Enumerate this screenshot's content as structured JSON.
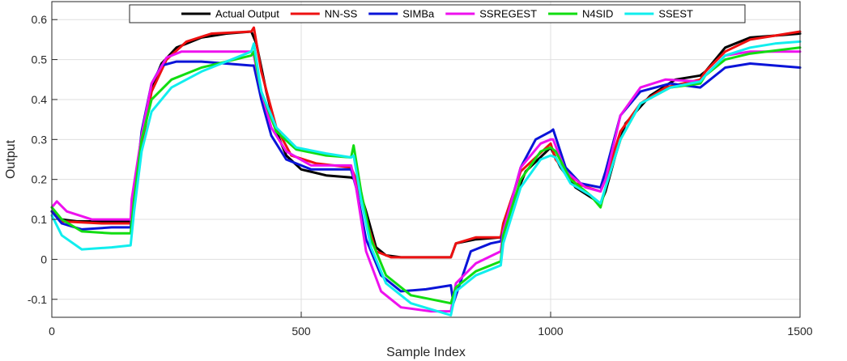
{
  "chart_data": {
    "type": "line",
    "xlabel": "Sample Index",
    "ylabel": "Output",
    "xlim": [
      0,
      1500
    ],
    "ylim": [
      -0.145,
      0.645
    ],
    "xticks": [
      0,
      500,
      1000,
      1500
    ],
    "yticks": [
      -0.1,
      0,
      0.1,
      0.2,
      0.3,
      0.4,
      0.5,
      0.6
    ],
    "grid": true,
    "legend_position": "top-center",
    "series": [
      {
        "name": "Actual Output",
        "color": "#000000",
        "points": [
          [
            0,
            0.12
          ],
          [
            20,
            0.1
          ],
          [
            50,
            0.095
          ],
          [
            100,
            0.095
          ],
          [
            150,
            0.095
          ],
          [
            158,
            0.095
          ],
          [
            165,
            0.15
          ],
          [
            180,
            0.3
          ],
          [
            200,
            0.43
          ],
          [
            220,
            0.49
          ],
          [
            250,
            0.53
          ],
          [
            300,
            0.555
          ],
          [
            350,
            0.565
          ],
          [
            400,
            0.57
          ],
          [
            410,
            0.54
          ],
          [
            430,
            0.42
          ],
          [
            450,
            0.32
          ],
          [
            470,
            0.26
          ],
          [
            500,
            0.225
          ],
          [
            550,
            0.21
          ],
          [
            600,
            0.205
          ],
          [
            610,
            0.2
          ],
          [
            630,
            0.12
          ],
          [
            650,
            0.03
          ],
          [
            670,
            0.01
          ],
          [
            700,
            0.005
          ],
          [
            750,
            0.005
          ],
          [
            800,
            0.005
          ],
          [
            810,
            0.04
          ],
          [
            850,
            0.05
          ],
          [
            900,
            0.055
          ],
          [
            910,
            0.1
          ],
          [
            950,
            0.22
          ],
          [
            1000,
            0.28
          ],
          [
            1020,
            0.23
          ],
          [
            1050,
            0.18
          ],
          [
            1100,
            0.14
          ],
          [
            1110,
            0.17
          ],
          [
            1130,
            0.26
          ],
          [
            1150,
            0.34
          ],
          [
            1200,
            0.41
          ],
          [
            1250,
            0.45
          ],
          [
            1300,
            0.46
          ],
          [
            1310,
            0.47
          ],
          [
            1350,
            0.53
          ],
          [
            1400,
            0.555
          ],
          [
            1450,
            0.56
          ],
          [
            1500,
            0.565
          ]
        ]
      },
      {
        "name": "NN-SS",
        "color": "#ee1111",
        "points": [
          [
            0,
            0.12
          ],
          [
            20,
            0.095
          ],
          [
            100,
            0.09
          ],
          [
            158,
            0.09
          ],
          [
            165,
            0.14
          ],
          [
            180,
            0.28
          ],
          [
            200,
            0.42
          ],
          [
            230,
            0.5
          ],
          [
            270,
            0.545
          ],
          [
            320,
            0.565
          ],
          [
            400,
            0.57
          ],
          [
            405,
            0.58
          ],
          [
            420,
            0.47
          ],
          [
            450,
            0.33
          ],
          [
            480,
            0.26
          ],
          [
            530,
            0.24
          ],
          [
            600,
            0.23
          ],
          [
            610,
            0.2
          ],
          [
            630,
            0.1
          ],
          [
            650,
            0.02
          ],
          [
            680,
            0.005
          ],
          [
            750,
            0.005
          ],
          [
            800,
            0.005
          ],
          [
            810,
            0.04
          ],
          [
            850,
            0.055
          ],
          [
            900,
            0.055
          ],
          [
            905,
            0.09
          ],
          [
            940,
            0.22
          ],
          [
            1000,
            0.29
          ],
          [
            1010,
            0.25
          ],
          [
            1050,
            0.19
          ],
          [
            1100,
            0.17
          ],
          [
            1110,
            0.2
          ],
          [
            1140,
            0.32
          ],
          [
            1180,
            0.39
          ],
          [
            1230,
            0.43
          ],
          [
            1300,
            0.45
          ],
          [
            1310,
            0.47
          ],
          [
            1350,
            0.52
          ],
          [
            1400,
            0.55
          ],
          [
            1450,
            0.56
          ],
          [
            1500,
            0.57
          ]
        ]
      },
      {
        "name": "SIMBa",
        "color": "#0a14d8",
        "points": [
          [
            0,
            0.12
          ],
          [
            20,
            0.09
          ],
          [
            60,
            0.075
          ],
          [
            120,
            0.08
          ],
          [
            158,
            0.08
          ],
          [
            165,
            0.15
          ],
          [
            180,
            0.32
          ],
          [
            200,
            0.44
          ],
          [
            220,
            0.485
          ],
          [
            250,
            0.495
          ],
          [
            300,
            0.495
          ],
          [
            400,
            0.485
          ],
          [
            405,
            0.485
          ],
          [
            420,
            0.4
          ],
          [
            440,
            0.31
          ],
          [
            470,
            0.25
          ],
          [
            520,
            0.225
          ],
          [
            600,
            0.225
          ],
          [
            610,
            0.18
          ],
          [
            630,
            0.05
          ],
          [
            660,
            -0.04
          ],
          [
            700,
            -0.08
          ],
          [
            750,
            -0.075
          ],
          [
            800,
            -0.065
          ],
          [
            805,
            -0.11
          ],
          [
            840,
            0.02
          ],
          [
            880,
            0.04
          ],
          [
            900,
            0.045
          ],
          [
            905,
            0.07
          ],
          [
            940,
            0.23
          ],
          [
            970,
            0.3
          ],
          [
            1000,
            0.32
          ],
          [
            1005,
            0.325
          ],
          [
            1030,
            0.23
          ],
          [
            1060,
            0.19
          ],
          [
            1100,
            0.18
          ],
          [
            1110,
            0.22
          ],
          [
            1140,
            0.36
          ],
          [
            1180,
            0.42
          ],
          [
            1240,
            0.44
          ],
          [
            1300,
            0.43
          ],
          [
            1310,
            0.44
          ],
          [
            1350,
            0.48
          ],
          [
            1400,
            0.49
          ],
          [
            1500,
            0.48
          ]
        ]
      },
      {
        "name": "SSREGEST",
        "color": "#ee11ee",
        "points": [
          [
            0,
            0.13
          ],
          [
            10,
            0.145
          ],
          [
            30,
            0.12
          ],
          [
            80,
            0.1
          ],
          [
            158,
            0.1
          ],
          [
            160,
            0.15
          ],
          [
            180,
            0.31
          ],
          [
            200,
            0.44
          ],
          [
            230,
            0.505
          ],
          [
            260,
            0.52
          ],
          [
            300,
            0.52
          ],
          [
            400,
            0.52
          ],
          [
            405,
            0.51
          ],
          [
            420,
            0.42
          ],
          [
            440,
            0.33
          ],
          [
            470,
            0.27
          ],
          [
            520,
            0.235
          ],
          [
            600,
            0.235
          ],
          [
            610,
            0.18
          ],
          [
            630,
            0.02
          ],
          [
            660,
            -0.08
          ],
          [
            700,
            -0.12
          ],
          [
            760,
            -0.13
          ],
          [
            800,
            -0.13
          ],
          [
            810,
            -0.06
          ],
          [
            850,
            -0.01
          ],
          [
            900,
            0.02
          ],
          [
            905,
            0.07
          ],
          [
            940,
            0.23
          ],
          [
            980,
            0.29
          ],
          [
            1000,
            0.3
          ],
          [
            1005,
            0.3
          ],
          [
            1030,
            0.22
          ],
          [
            1070,
            0.18
          ],
          [
            1100,
            0.17
          ],
          [
            1110,
            0.2
          ],
          [
            1140,
            0.36
          ],
          [
            1180,
            0.43
          ],
          [
            1230,
            0.45
          ],
          [
            1300,
            0.445
          ],
          [
            1310,
            0.46
          ],
          [
            1350,
            0.51
          ],
          [
            1400,
            0.52
          ],
          [
            1500,
            0.52
          ]
        ]
      },
      {
        "name": "N4SID",
        "color": "#11dd11",
        "points": [
          [
            0,
            0.13
          ],
          [
            20,
            0.1
          ],
          [
            60,
            0.07
          ],
          [
            120,
            0.065
          ],
          [
            158,
            0.065
          ],
          [
            165,
            0.15
          ],
          [
            180,
            0.3
          ],
          [
            200,
            0.4
          ],
          [
            240,
            0.45
          ],
          [
            300,
            0.48
          ],
          [
            400,
            0.51
          ],
          [
            405,
            0.52
          ],
          [
            420,
            0.42
          ],
          [
            450,
            0.32
          ],
          [
            490,
            0.275
          ],
          [
            550,
            0.26
          ],
          [
            600,
            0.255
          ],
          [
            605,
            0.285
          ],
          [
            620,
            0.17
          ],
          [
            640,
            0.05
          ],
          [
            670,
            -0.04
          ],
          [
            720,
            -0.09
          ],
          [
            800,
            -0.11
          ],
          [
            810,
            -0.07
          ],
          [
            850,
            -0.03
          ],
          [
            900,
            -0.005
          ],
          [
            905,
            0.06
          ],
          [
            940,
            0.2
          ],
          [
            980,
            0.27
          ],
          [
            1000,
            0.28
          ],
          [
            1010,
            0.27
          ],
          [
            1040,
            0.2
          ],
          [
            1080,
            0.16
          ],
          [
            1100,
            0.13
          ],
          [
            1110,
            0.18
          ],
          [
            1140,
            0.3
          ],
          [
            1180,
            0.39
          ],
          [
            1240,
            0.43
          ],
          [
            1300,
            0.44
          ],
          [
            1310,
            0.46
          ],
          [
            1350,
            0.5
          ],
          [
            1400,
            0.515
          ],
          [
            1500,
            0.53
          ]
        ]
      },
      {
        "name": "SSEST",
        "color": "#11eeee",
        "points": [
          [
            0,
            0.11
          ],
          [
            20,
            0.06
          ],
          [
            60,
            0.025
          ],
          [
            120,
            0.03
          ],
          [
            158,
            0.035
          ],
          [
            165,
            0.12
          ],
          [
            180,
            0.27
          ],
          [
            200,
            0.37
          ],
          [
            240,
            0.43
          ],
          [
            300,
            0.47
          ],
          [
            400,
            0.52
          ],
          [
            405,
            0.54
          ],
          [
            420,
            0.42
          ],
          [
            450,
            0.33
          ],
          [
            490,
            0.28
          ],
          [
            550,
            0.265
          ],
          [
            600,
            0.255
          ],
          [
            605,
            0.26
          ],
          [
            620,
            0.15
          ],
          [
            640,
            0.03
          ],
          [
            670,
            -0.06
          ],
          [
            720,
            -0.11
          ],
          [
            800,
            -0.14
          ],
          [
            810,
            -0.08
          ],
          [
            850,
            -0.04
          ],
          [
            900,
            -0.015
          ],
          [
            905,
            0.04
          ],
          [
            940,
            0.18
          ],
          [
            980,
            0.25
          ],
          [
            1000,
            0.26
          ],
          [
            1010,
            0.255
          ],
          [
            1040,
            0.19
          ],
          [
            1080,
            0.16
          ],
          [
            1100,
            0.14
          ],
          [
            1110,
            0.18
          ],
          [
            1140,
            0.3
          ],
          [
            1180,
            0.39
          ],
          [
            1240,
            0.43
          ],
          [
            1300,
            0.445
          ],
          [
            1310,
            0.46
          ],
          [
            1350,
            0.51
          ],
          [
            1400,
            0.53
          ],
          [
            1450,
            0.54
          ],
          [
            1500,
            0.545
          ]
        ]
      }
    ]
  }
}
